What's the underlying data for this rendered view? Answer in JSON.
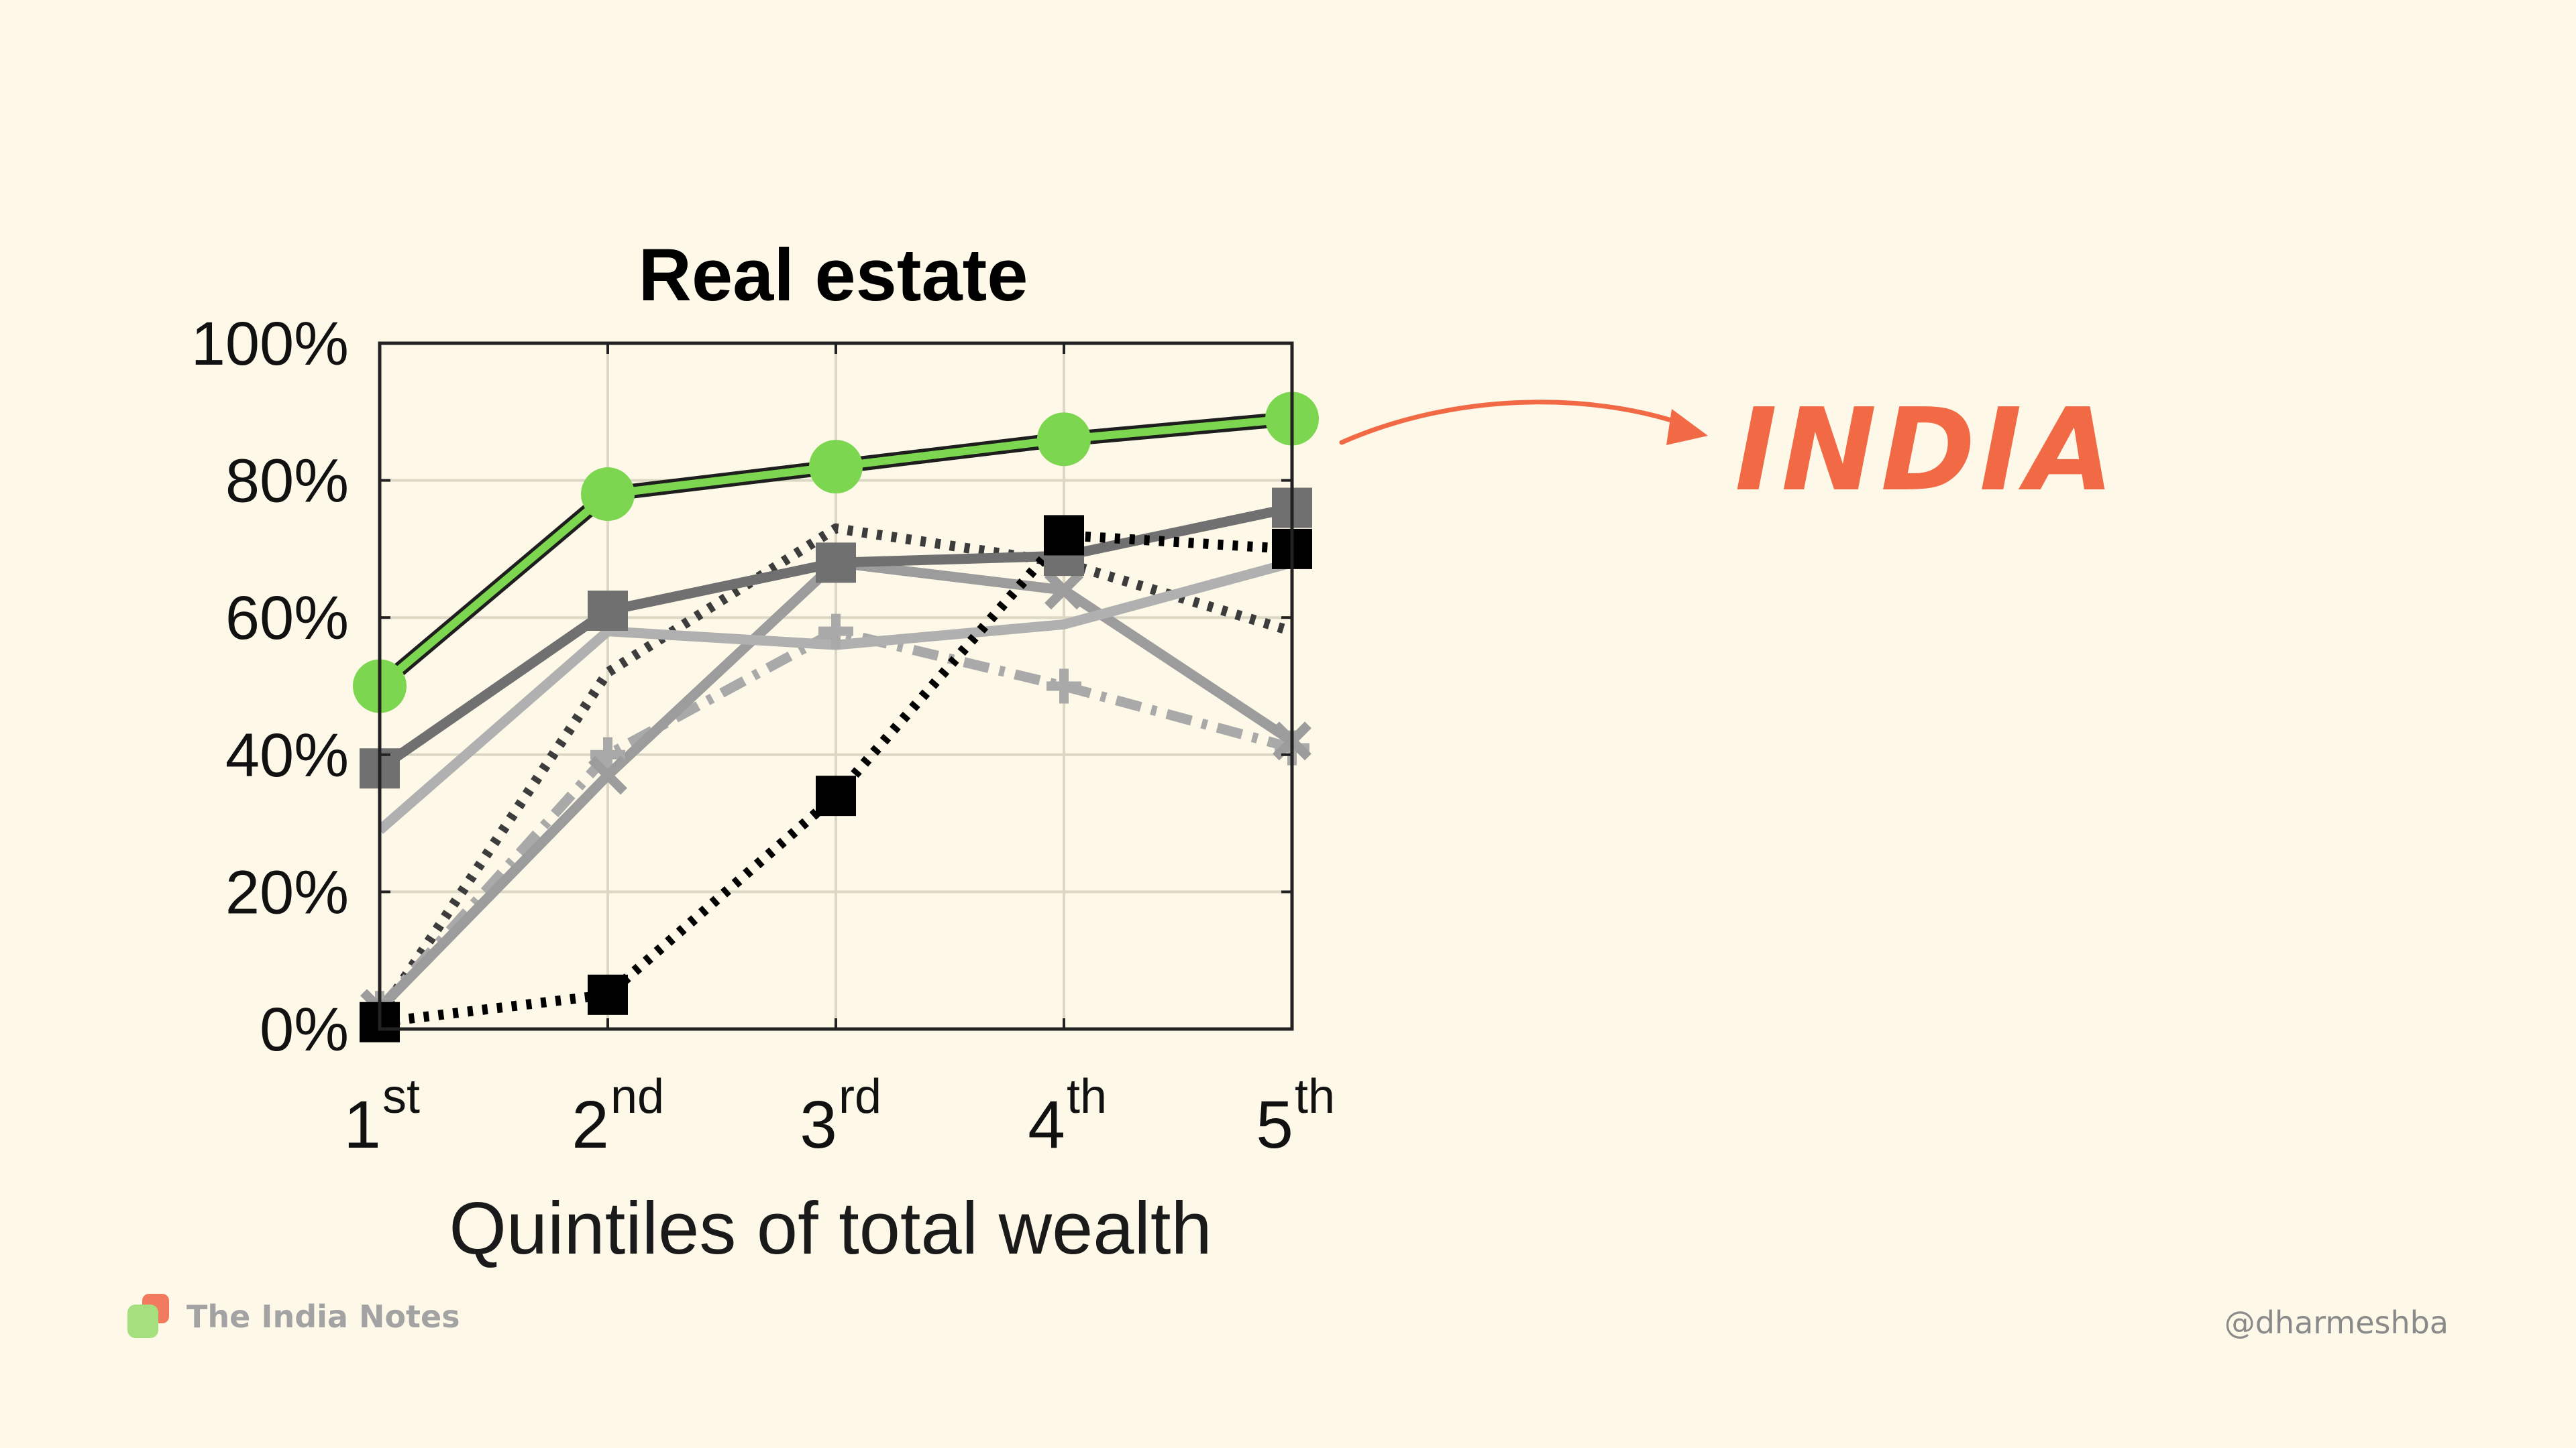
{
  "chart_data": {
    "type": "line",
    "title": "Real estate",
    "xlabel": "Quintiles of total wealth",
    "ylabel": "",
    "categories": [
      {
        "base": "1",
        "sup": "st"
      },
      {
        "base": "2",
        "sup": "nd"
      },
      {
        "base": "3",
        "sup": "rd"
      },
      {
        "base": "4",
        "sup": "th"
      },
      {
        "base": "5",
        "sup": "th"
      }
    ],
    "ylim": [
      0,
      100
    ],
    "yticks": [
      "0%",
      "20%",
      "40%",
      "60%",
      "80%",
      "100%"
    ],
    "grid": true,
    "series": [
      {
        "color": "#3c3c3c",
        "style": "dotted",
        "marker": "none",
        "values": [
          2,
          52,
          73,
          68,
          58
        ]
      },
      {
        "color": "#a9a9a9",
        "style": "dashdot",
        "marker": "plus",
        "values": [
          3,
          40,
          58,
          50,
          41
        ]
      },
      {
        "color": "#9c9c9c",
        "style": "solid",
        "marker": "x",
        "values": [
          3,
          37,
          68,
          64,
          42
        ]
      },
      {
        "color": "#b0b0b0",
        "style": "solid",
        "marker": "none",
        "values": [
          29,
          58,
          56,
          59,
          68
        ]
      },
      {
        "color": "#707070",
        "style": "solid",
        "marker": "square",
        "values": [
          38,
          61,
          68,
          69,
          76
        ]
      },
      {
        "color": "#000000",
        "style": "dotted",
        "marker": "square",
        "values": [
          1,
          5,
          34,
          72,
          70
        ]
      },
      {
        "color": "#7dd64f",
        "style": "solid",
        "marker": "circle",
        "values": [
          50,
          78,
          82,
          86,
          89
        ],
        "highlight": true
      }
    ],
    "annotation": {
      "text": "INDIA",
      "color": "#f26a45",
      "target_series": 6
    }
  },
  "footer": {
    "brand": "The India Notes",
    "handle": "@dharmeshba"
  }
}
